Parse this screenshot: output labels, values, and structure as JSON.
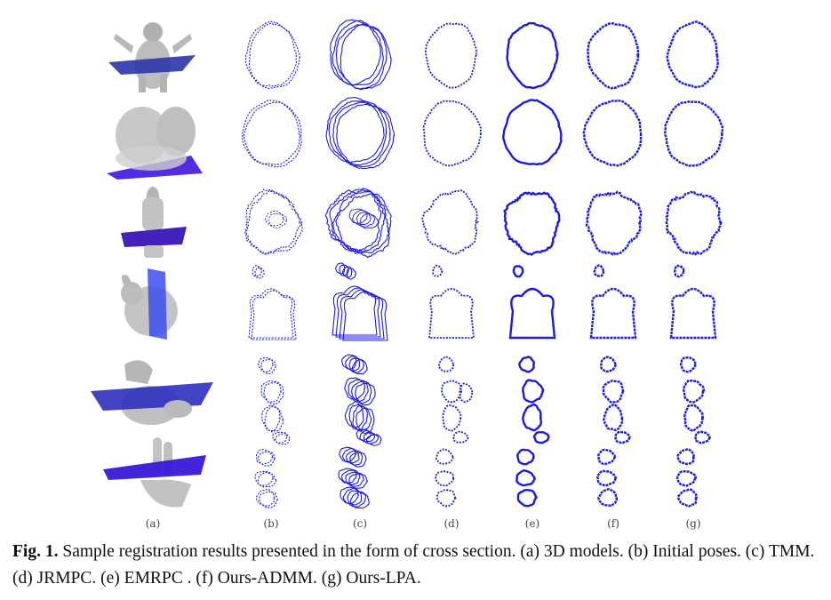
{
  "figure": {
    "columns": [
      {
        "id": "a",
        "label": "(a)"
      },
      {
        "id": "b",
        "label": "(b)"
      },
      {
        "id": "c",
        "label": "(c)"
      },
      {
        "id": "d",
        "label": "(d)"
      },
      {
        "id": "e",
        "label": "(e)"
      },
      {
        "id": "f",
        "label": "(f)"
      },
      {
        "id": "g",
        "label": "(g)"
      }
    ],
    "rows": [
      "armadillo",
      "head",
      "buddha",
      "bunny",
      "dragon",
      "hand"
    ],
    "colors": {
      "contour": "#1a1ae6",
      "plane": "#3b2ad0",
      "model": "#c4c4c4"
    }
  },
  "caption": {
    "label": "Fig. 1.",
    "text": "Sample registration results presented in the form of cross section. (a) 3D models. (b) Initial poses. (c) TMM. (d) JRMPC. (e) EMRPC . (f) Ours-ADMM. (g) Ours-LPA."
  }
}
